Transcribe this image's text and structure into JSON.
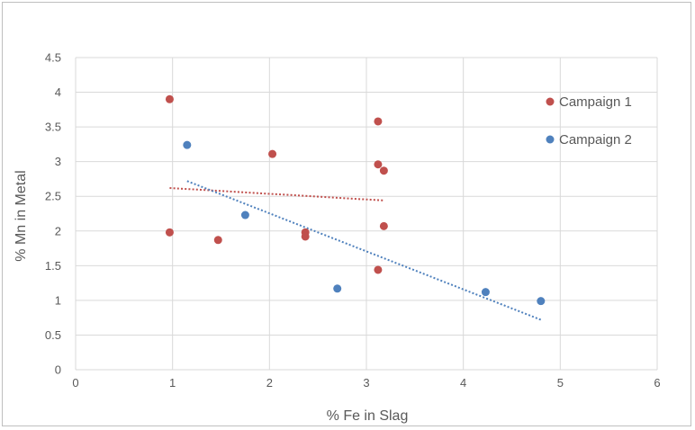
{
  "chart_data": {
    "type": "scatter",
    "title": "",
    "xlabel": "% Fe in Slag",
    "ylabel": "% Mn in Metal",
    "xlim": [
      0,
      6
    ],
    "ylim": [
      0,
      4.5
    ],
    "x_ticks": [
      "0",
      "1",
      "2",
      "3",
      "4",
      "5",
      "6"
    ],
    "y_ticks": [
      "0",
      "0.5",
      "1",
      "1.5",
      "2",
      "2.5",
      "3",
      "3.5",
      "4",
      "4.5"
    ],
    "grid": true,
    "legend_position": "right",
    "series": [
      {
        "name": "Campaign 1",
        "color": "#c0504d",
        "points": [
          {
            "x": 0.97,
            "y": 3.9
          },
          {
            "x": 0.97,
            "y": 1.98
          },
          {
            "x": 1.47,
            "y": 1.87
          },
          {
            "x": 2.03,
            "y": 3.11
          },
          {
            "x": 2.37,
            "y": 1.98
          },
          {
            "x": 2.37,
            "y": 1.92
          },
          {
            "x": 3.12,
            "y": 3.58
          },
          {
            "x": 3.12,
            "y": 2.96
          },
          {
            "x": 3.18,
            "y": 2.87
          },
          {
            "x": 3.18,
            "y": 2.07
          },
          {
            "x": 3.12,
            "y": 1.44
          }
        ],
        "trendline": {
          "style": "dotted",
          "x": [
            0.97,
            3.18
          ],
          "y": [
            2.62,
            2.44
          ]
        }
      },
      {
        "name": "Campaign 2",
        "color": "#4f81bd",
        "points": [
          {
            "x": 1.15,
            "y": 3.24
          },
          {
            "x": 1.75,
            "y": 2.23
          },
          {
            "x": 2.7,
            "y": 1.17
          },
          {
            "x": 4.23,
            "y": 1.12
          },
          {
            "x": 4.8,
            "y": 0.99
          }
        ],
        "trendline": {
          "style": "dotted",
          "x": [
            1.15,
            4.8
          ],
          "y": [
            2.72,
            0.72
          ]
        }
      }
    ]
  }
}
